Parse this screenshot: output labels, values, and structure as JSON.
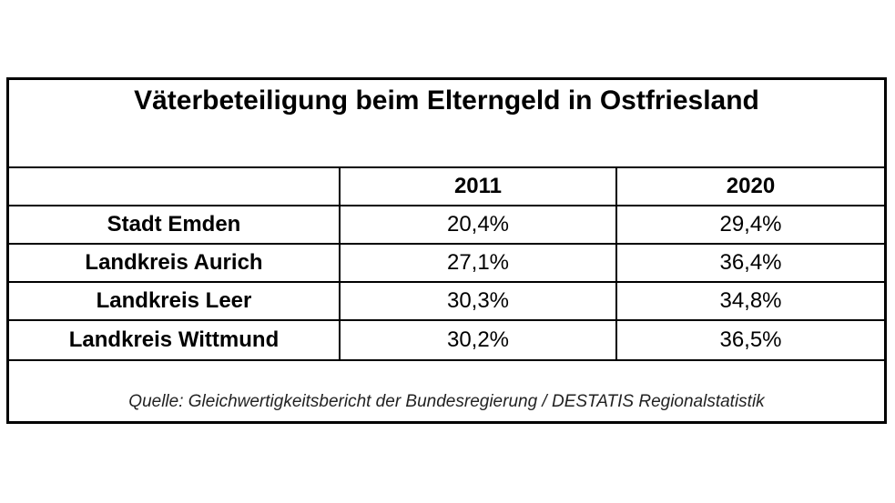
{
  "title": "Väterbeteiligung beim Elterngeld in Ostfriesland",
  "table": {
    "columns": [
      "",
      "2011",
      "2020"
    ],
    "rows": [
      {
        "region": "Stadt Emden",
        "y2011": "20,4%",
        "y2020": "29,4%"
      },
      {
        "region": "Landkreis Aurich",
        "y2011": "27,1%",
        "y2020": "36,4%"
      },
      {
        "region": "Landkreis Leer",
        "y2011": "30,3%",
        "y2020": "34,8%"
      },
      {
        "region": "Landkreis Wittmund",
        "y2011": "30,2%",
        "y2020": "36,5%"
      }
    ]
  },
  "source": "Quelle: Gleichwertigkeitsbericht der Bundesregierung / DESTATIS Regionalstatistik"
}
